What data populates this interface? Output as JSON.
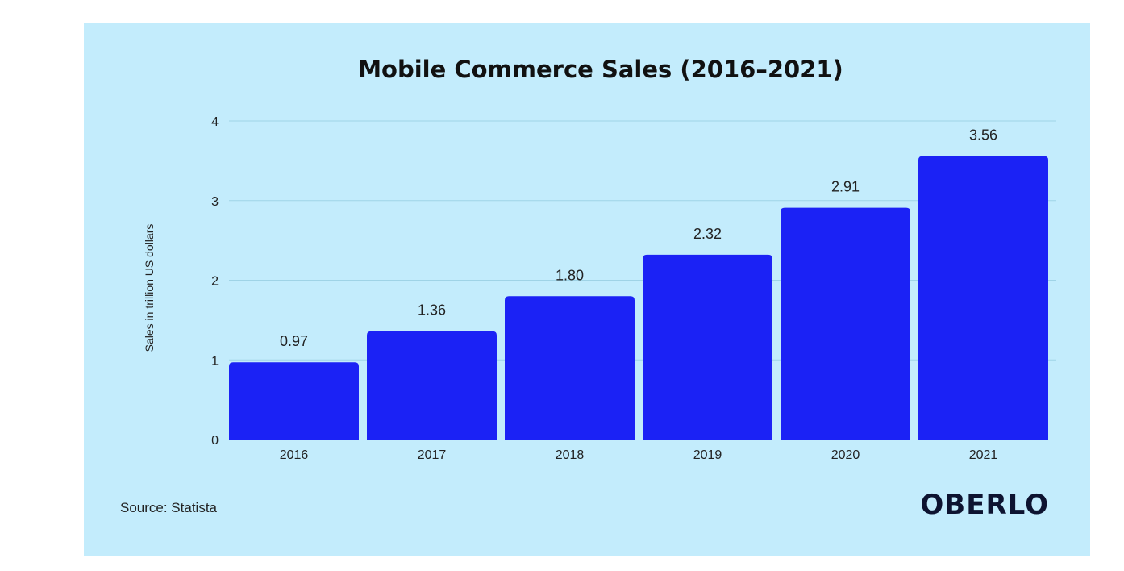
{
  "colors": {
    "background": "#c3ecfc",
    "bar": "#1b22f5",
    "gridline": "#9fd3e6",
    "text": "#222222",
    "brand": "#0d1330"
  },
  "footer": {
    "source": "Source: Statista",
    "brand": "OBERLO"
  },
  "chart_data": {
    "type": "bar",
    "title": "Mobile Commerce Sales (2016–2021)",
    "xlabel": "",
    "ylabel": "Sales in trillion US dollars",
    "categories": [
      "2016",
      "2017",
      "2018",
      "2019",
      "2020",
      "2021"
    ],
    "values": [
      0.97,
      1.36,
      1.8,
      2.32,
      2.91,
      3.56
    ],
    "value_labels": [
      "0.97",
      "1.36",
      "1.80",
      "2.32",
      "2.91",
      "3.56"
    ],
    "ylim": [
      0,
      4
    ],
    "yticks": [
      0,
      1,
      2,
      3,
      4
    ],
    "grid": true,
    "legend": "none"
  }
}
